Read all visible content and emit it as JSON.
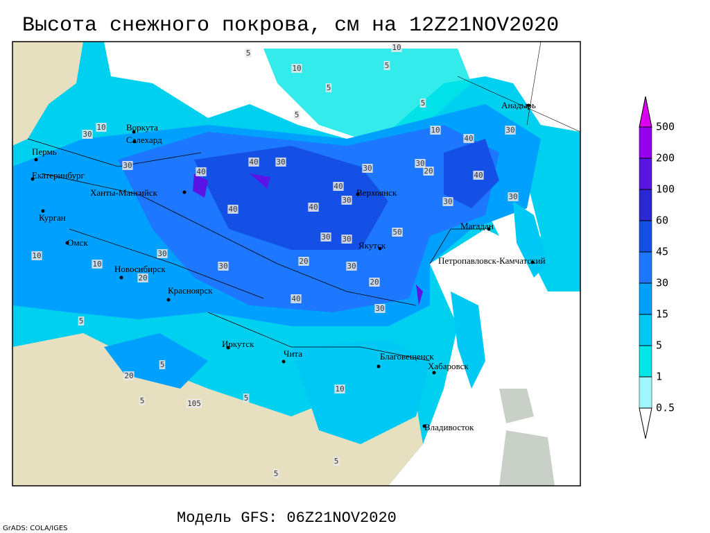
{
  "title": "Высота снежного покрова, см на 12Z21NOV2020",
  "subtitle": "Модель GFS: 06Z21NOV2020",
  "credit": "GrADS: COLA/IGES",
  "colorbar": {
    "levels": [
      0.5,
      1,
      5,
      15,
      30,
      45,
      60,
      100,
      200,
      500
    ],
    "colors": [
      "#ffffff",
      "#a0f5ff",
      "#00e6e6",
      "#00c8f5",
      "#00a0ff",
      "#1e78ff",
      "#1450e6",
      "#2a28d2",
      "#5a14e6",
      "#9600f0",
      "#dc00f0"
    ]
  },
  "cities": [
    "Воркута",
    "Салехард",
    "Пермь",
    "Екатеринбург",
    "Ханты-Мансийск",
    "Курган",
    "Омск",
    "Новосибирск",
    "Красноярск",
    "Иркутск",
    "Чита",
    "Благовещенск",
    "Хабаровск",
    "Владивосток",
    "Верхоянск",
    "Якутск",
    "Магадан",
    "Петропавловск-Камчатский",
    "Анадырь"
  ],
  "contour_labels": [
    10,
    5,
    10,
    5,
    5,
    5,
    5,
    10,
    30,
    40,
    30,
    10,
    30,
    40,
    40,
    30,
    30,
    30,
    40,
    30,
    40,
    40,
    30,
    30,
    50,
    30,
    30,
    20,
    30,
    20,
    40,
    30,
    20,
    10,
    10,
    5,
    5,
    20,
    105,
    5,
    5,
    10,
    5,
    5,
    20,
    40,
    30,
    30
  ]
}
